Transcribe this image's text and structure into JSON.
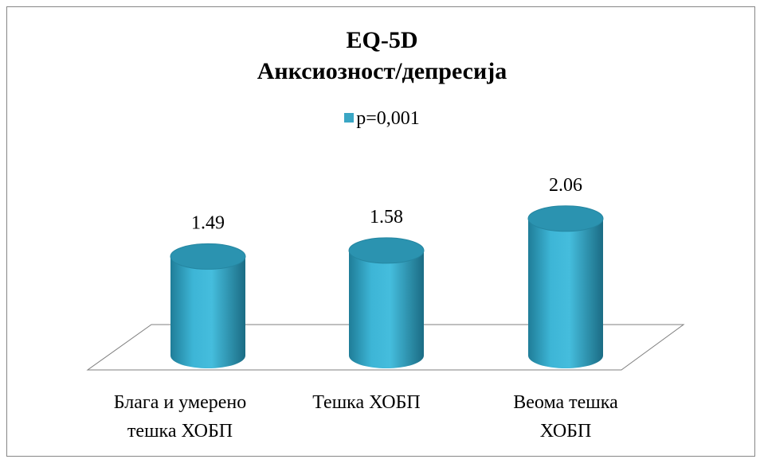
{
  "chart_data": {
    "type": "bar",
    "title": [
      "EQ-5D",
      "Анксиозност/депресија"
    ],
    "series": [
      {
        "name": "p=0,001",
        "values": [
          1.49,
          1.58,
          2.06
        ]
      }
    ],
    "categories": [
      [
        "Блага и умерено",
        "тешка ХОБП"
      ],
      [
        "Тешка ХОБП"
      ],
      [
        "Веома тешка",
        "ХОБП"
      ]
    ],
    "value_labels": [
      "1.49",
      "1.58",
      "2.06"
    ],
    "bar_shape": "cylinder",
    "legend_position": "top",
    "grid": false,
    "colors": {
      "bar": "#3aa6c4",
      "bar_dark": "#1f6f86",
      "bar_top": "#2b93b0",
      "floor": "#ffffff",
      "floor_stroke": "#7f7f7f"
    }
  }
}
